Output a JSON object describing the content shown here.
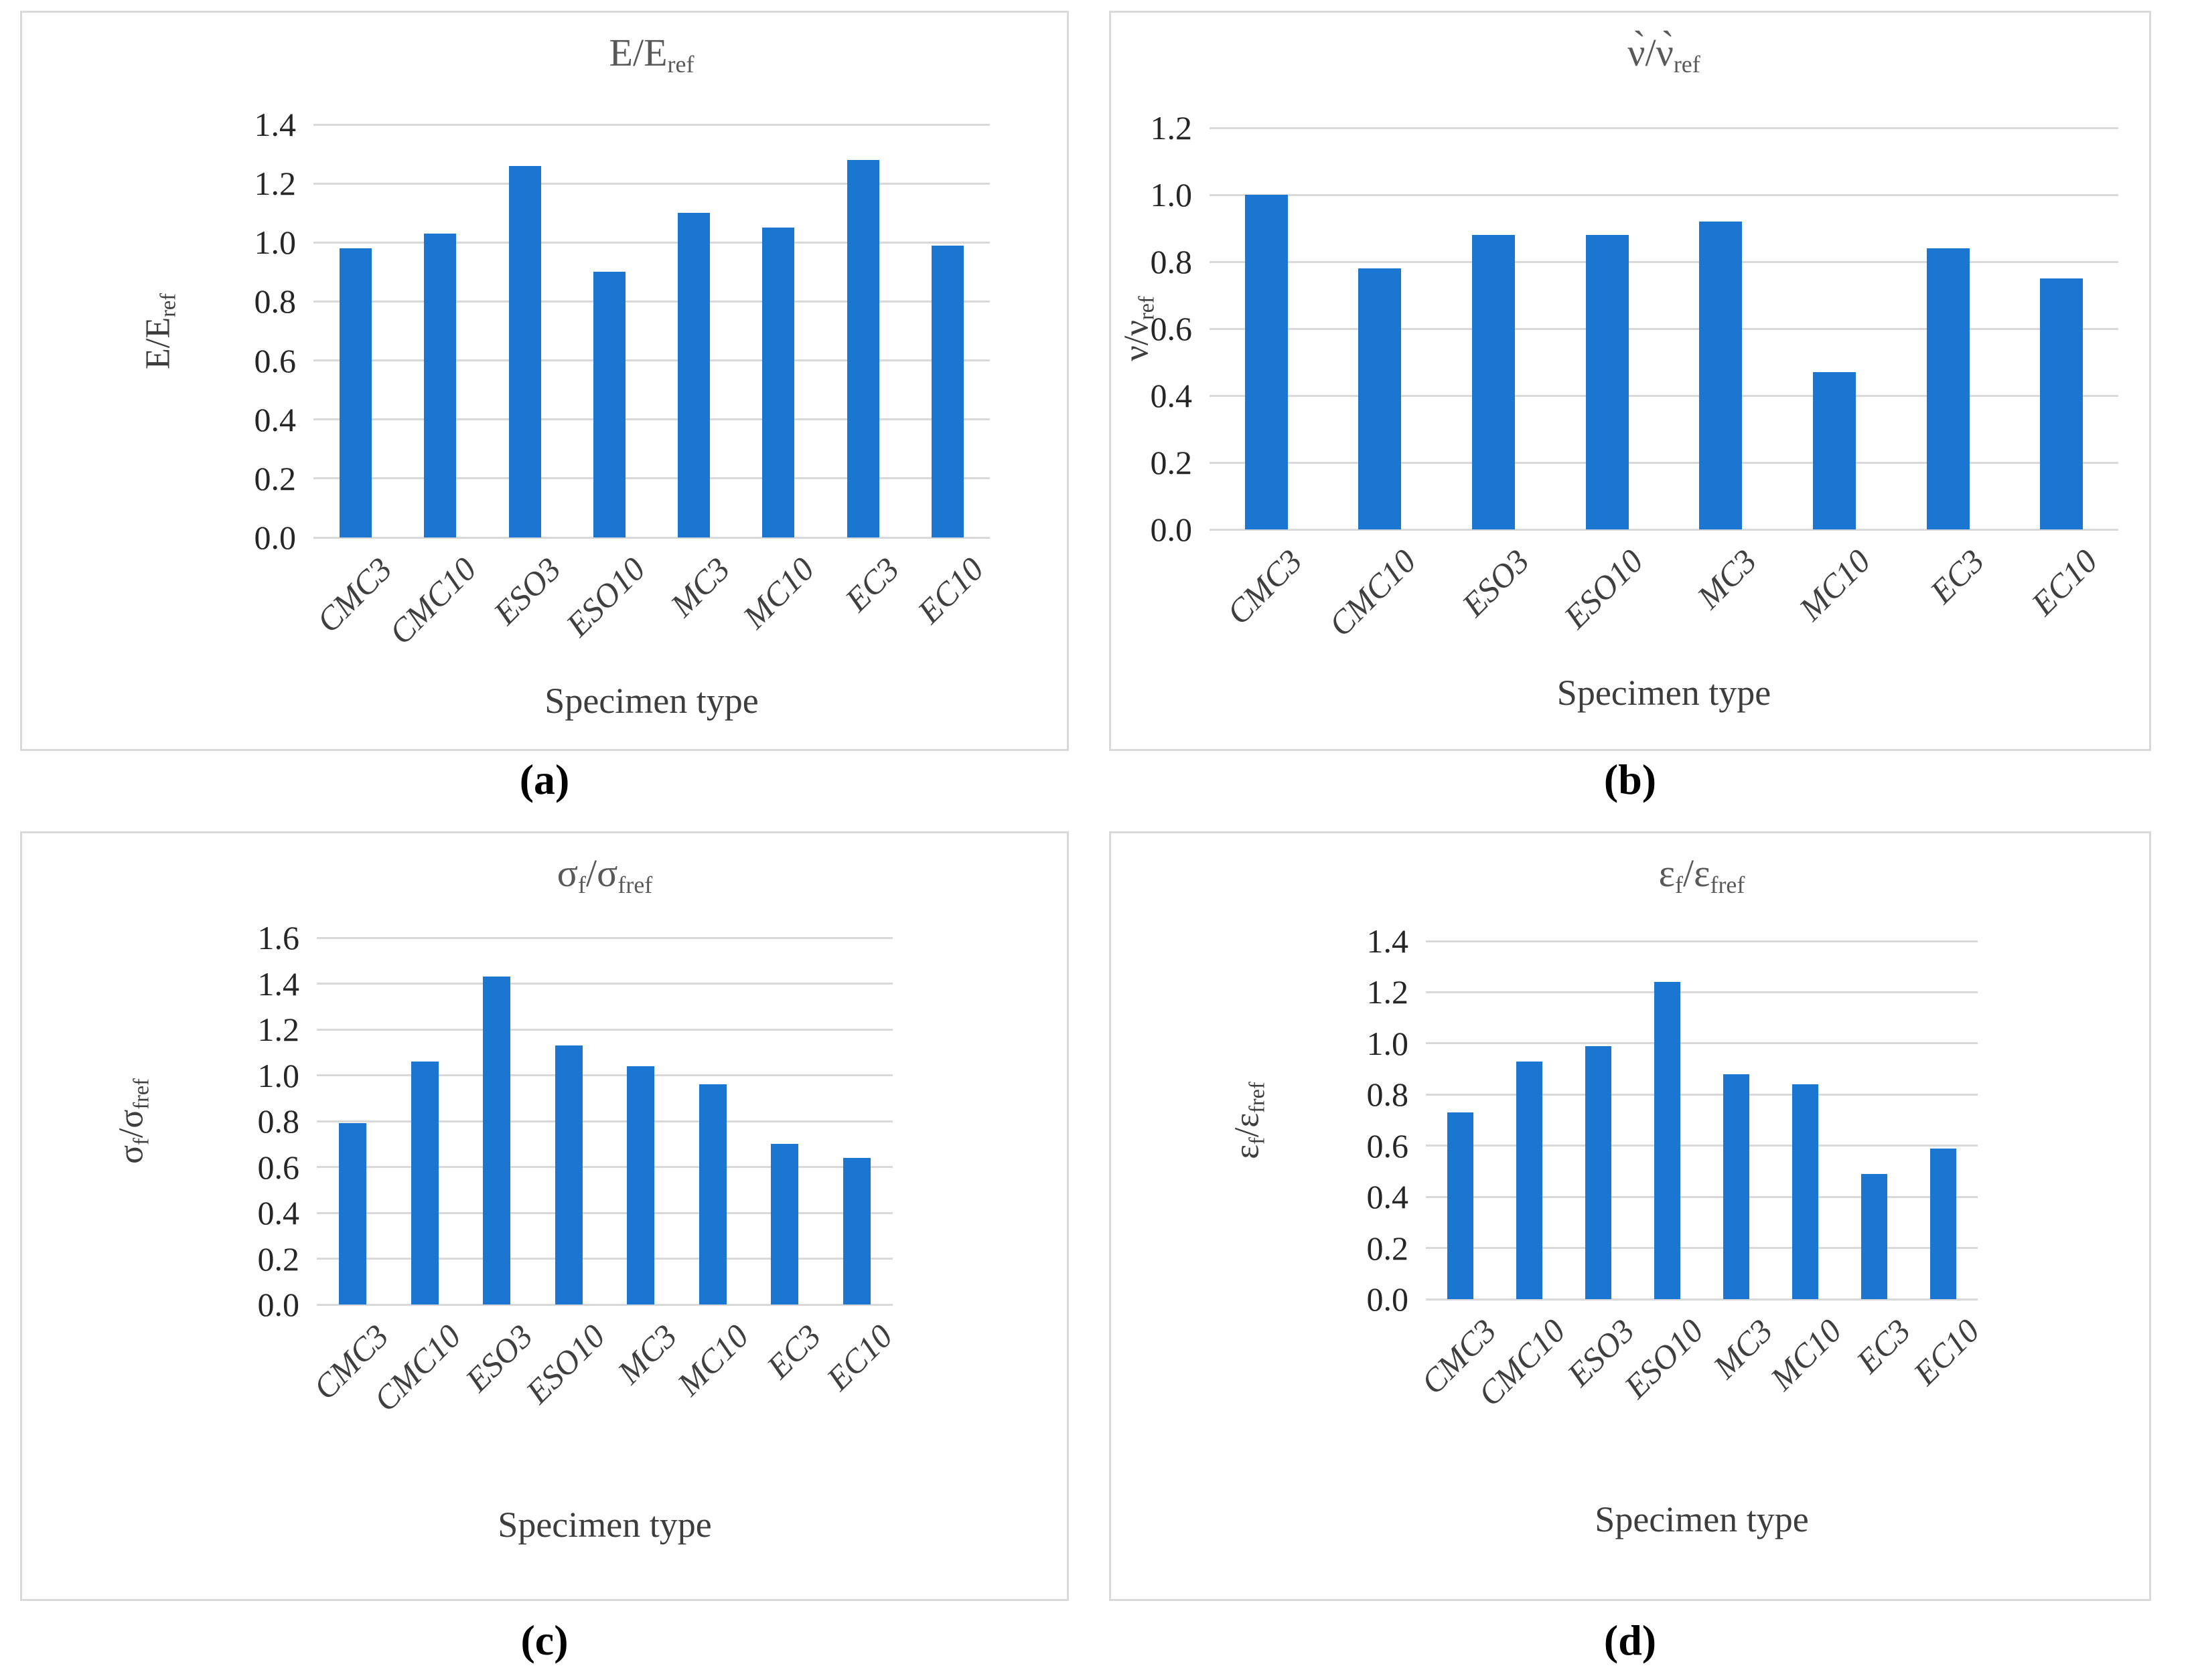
{
  "colors": {
    "bar_fill": "#1b76d2",
    "gridline": "#d9d9d9",
    "panel_border": "#d9d9d9",
    "chart_title_text": "#595959",
    "tick_text": "#262626",
    "category_text": "#3f3f3f",
    "axis_title_text": "#3d3d3d",
    "background": "#ffffff"
  },
  "chart_data": [
    {
      "type": "bar",
      "panel": "a",
      "caption": "(a)",
      "title": "E/E_ref",
      "title_parts": [
        {
          "t": "E/E"
        },
        {
          "t": "ref",
          "sub": true
        }
      ],
      "ylabel": "E/E_ref",
      "ylabel_parts": [
        {
          "t": "E/E"
        },
        {
          "t": "ref",
          "sub": true
        }
      ],
      "xlabel": "Specimen type",
      "categories": [
        "CMC3",
        "CMC10",
        "ESO3",
        "ESO10",
        "MC3",
        "MC10",
        "EC3",
        "EC10"
      ],
      "values": [
        0.98,
        1.03,
        1.26,
        0.9,
        1.1,
        1.05,
        1.28,
        0.99
      ],
      "ylim": [
        0.0,
        1.4
      ],
      "ytick_step": 0.2,
      "ytick_labels": [
        "1.4",
        "1.2",
        "1.0",
        "0.8",
        "0.6",
        "0.4",
        "0.2",
        "0.0"
      ],
      "grid": true,
      "legend": "none"
    },
    {
      "type": "bar",
      "panel": "b",
      "caption": "(b)",
      "title": "ν̀/ν̀_ref",
      "title_parts": [
        {
          "t": "ν̀/ν̀"
        },
        {
          "t": "ref",
          "sub": true
        }
      ],
      "ylabel": "ν/ν_ref",
      "ylabel_parts": [
        {
          "t": "ν/ν"
        },
        {
          "t": "ref",
          "sub": true
        }
      ],
      "xlabel": "Specimen  type",
      "categories": [
        "CMC3",
        "CMC10",
        "ESO3",
        "ESO10",
        "MC3",
        "MC10",
        "EC3",
        "EC10"
      ],
      "values": [
        1.0,
        0.78,
        0.88,
        0.88,
        0.92,
        0.47,
        0.84,
        0.75
      ],
      "ylim": [
        0.0,
        1.2
      ],
      "ytick_step": 0.2,
      "ytick_labels": [
        "1.2",
        "1.0",
        "0.8",
        "0.6",
        "0.4",
        "0.2",
        "0.0"
      ],
      "grid": true,
      "legend": "none"
    },
    {
      "type": "bar",
      "panel": "c",
      "caption": "(c)",
      "title": "σf/σfref",
      "title_parts": [
        {
          "t": "σ"
        },
        {
          "t": "f",
          "sub": true
        },
        {
          "t": "/σ"
        },
        {
          "t": "fref",
          "sub": true
        }
      ],
      "ylabel": "σf/σfref",
      "ylabel_parts": [
        {
          "t": "σ"
        },
        {
          "t": "f",
          "sub": true
        },
        {
          "t": "/σ"
        },
        {
          "t": "fref",
          "sub": true
        }
      ],
      "xlabel": "Specimen type",
      "categories": [
        "CMC3",
        "CMC10",
        "ESO3",
        "ESO10",
        "MC3",
        "MC10",
        "EC3",
        "EC10"
      ],
      "values": [
        0.79,
        1.06,
        1.43,
        1.13,
        1.04,
        0.96,
        0.7,
        0.64
      ],
      "ylim": [
        0.0,
        1.6
      ],
      "ytick_step": 0.2,
      "ytick_labels": [
        "1.6",
        "1.4",
        "1.2",
        "1.0",
        "0.8",
        "0.6",
        "0.4",
        "0.2",
        "0.0"
      ],
      "grid": true,
      "legend": "none"
    },
    {
      "type": "bar",
      "panel": "d",
      "caption": "(d)",
      "title": "εf/εfref",
      "title_parts": [
        {
          "t": "ε"
        },
        {
          "t": "f",
          "sub": true
        },
        {
          "t": "/ε"
        },
        {
          "t": "fref",
          "sub": true
        }
      ],
      "ylabel": "εf/εfref",
      "ylabel_parts": [
        {
          "t": "ε"
        },
        {
          "t": "f",
          "sub": true
        },
        {
          "t": "/ε"
        },
        {
          "t": "fref",
          "sub": true
        }
      ],
      "xlabel": "Specimen type",
      "categories": [
        "CMC3",
        "CMC10",
        "ESO3",
        "ESO10",
        "MC3",
        "MC10",
        "EC3",
        "EC10"
      ],
      "values": [
        0.73,
        0.93,
        0.99,
        1.24,
        0.88,
        0.84,
        0.49,
        0.59
      ],
      "ylim": [
        0.0,
        1.4
      ],
      "ytick_step": 0.2,
      "ytick_labels": [
        "1.4",
        "1.2",
        "1.0",
        "0.8",
        "0.6",
        "0.4",
        "0.2",
        "0.0"
      ],
      "grid": true,
      "legend": "none"
    }
  ]
}
